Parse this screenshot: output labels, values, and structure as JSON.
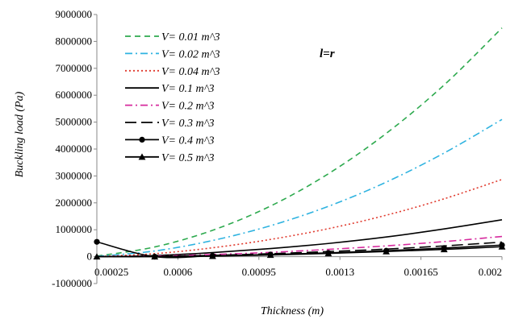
{
  "chart_data": {
    "type": "line",
    "title": "",
    "xlabel": "Thickness (m)",
    "ylabel": "Buckling load (Pa)",
    "xlim": [
      0.00025,
      0.002
    ],
    "ylim": [
      -1000000,
      9000000
    ],
    "x_ticks": [
      0.00025,
      0.0006,
      0.00095,
      0.0013,
      0.00165,
      0.002
    ],
    "x_tick_labels": [
      "0.00025",
      "0.0006",
      "0.00095",
      "0.0013",
      "0.00165",
      "0.002"
    ],
    "y_ticks": [
      -1000000,
      0,
      1000000,
      2000000,
      3000000,
      4000000,
      5000000,
      6000000,
      7000000,
      8000000,
      9000000
    ],
    "y_tick_labels": [
      "-1000000",
      "0",
      "1000000",
      "2000000",
      "3000000",
      "4000000",
      "5000000",
      "6000000",
      "7000000",
      "8000000",
      "9000000"
    ],
    "grid": false,
    "legend_position": "top-left",
    "annotation": "l=r",
    "x": [
      0.00025,
      0.0005,
      0.00075,
      0.001,
      0.00125,
      0.0015,
      0.00175,
      0.002
    ],
    "series": [
      {
        "name": "V= 0.01 m^3",
        "color": "#2eaa4f",
        "dash": "dashed",
        "marker": "none",
        "values": [
          20000,
          360000,
          980000,
          1880000,
          3080000,
          4580000,
          6380000,
          8500000
        ]
      },
      {
        "name": "V= 0.02 m^3",
        "color": "#2fb3e0",
        "dash": "dashdot",
        "marker": "none",
        "values": [
          10000,
          210000,
          600000,
          1150000,
          1870000,
          2770000,
          3850000,
          5100000
        ]
      },
      {
        "name": "V= 0.04 m^3",
        "color": "#e03a2e",
        "dash": "dotted",
        "marker": "none",
        "values": [
          0,
          110000,
          330000,
          640000,
          1040000,
          1540000,
          2150000,
          2870000
        ]
      },
      {
        "name": "V= 0.1 m^3",
        "color": "#000000",
        "dash": "solid",
        "marker": "none",
        "values": [
          0,
          40000,
          150000,
          300000,
          490000,
          730000,
          1030000,
          1370000
        ]
      },
      {
        "name": "V= 0.2 m^3",
        "color": "#d62b9e",
        "dash": "dashdot",
        "marker": "none",
        "values": [
          0,
          20000,
          80000,
          160000,
          270000,
          400000,
          560000,
          750000
        ]
      },
      {
        "name": "V= 0.3 m^3",
        "color": "#000000",
        "dash": "longdash",
        "marker": "none",
        "values": [
          0,
          10000,
          50000,
          110000,
          190000,
          280000,
          400000,
          540000
        ]
      },
      {
        "name": "V= 0.4 m^3",
        "color": "#000000",
        "dash": "solid",
        "marker": "circle",
        "values": [
          550000,
          0,
          30000,
          80000,
          140000,
          220000,
          320000,
          430000
        ]
      },
      {
        "name": "V= 0.5 m^3",
        "color": "#000000",
        "dash": "solid",
        "marker": "triangle",
        "values": [
          0,
          0,
          20000,
          60000,
          120000,
          190000,
          270000,
          370000
        ]
      }
    ]
  }
}
